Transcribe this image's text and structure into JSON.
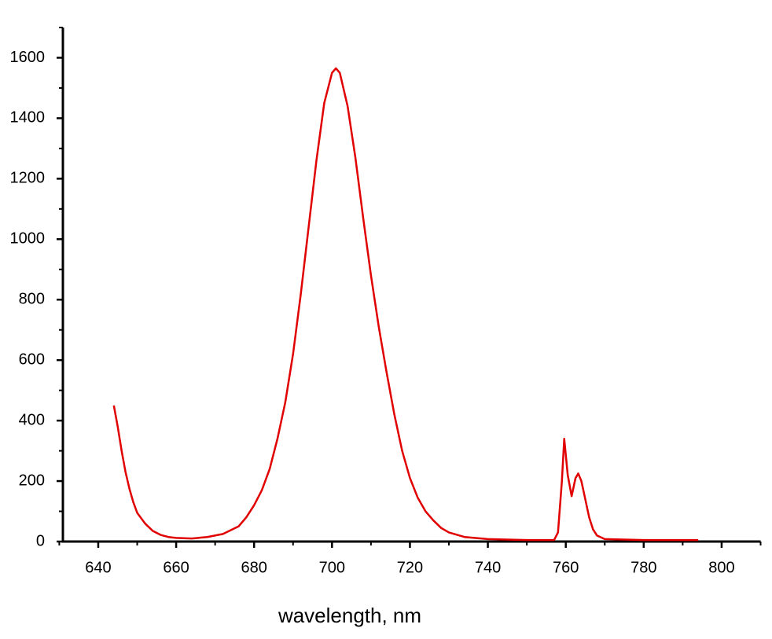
{
  "chart_data": {
    "type": "line",
    "x_label": "wavelength, nm",
    "x": [
      644,
      645,
      646,
      647,
      648,
      649,
      650,
      652,
      654,
      656,
      658,
      660,
      664,
      668,
      672,
      676,
      678,
      680,
      682,
      684,
      686,
      688,
      690,
      692,
      694,
      696,
      698,
      700,
      701,
      702,
      704,
      706,
      708,
      710,
      712,
      714,
      716,
      718,
      720,
      722,
      724,
      726,
      728,
      730,
      734,
      740,
      750,
      757,
      758,
      759,
      759.6,
      760.5,
      761.5,
      762.5,
      763.2,
      764,
      765,
      766,
      767,
      768,
      770,
      780,
      790,
      794
    ],
    "values": [
      450,
      380,
      300,
      230,
      175,
      130,
      95,
      60,
      35,
      22,
      15,
      12,
      10,
      15,
      25,
      50,
      80,
      120,
      170,
      240,
      340,
      460,
      620,
      820,
      1040,
      1260,
      1450,
      1550,
      1565,
      1550,
      1440,
      1270,
      1070,
      880,
      710,
      560,
      420,
      300,
      210,
      145,
      100,
      70,
      45,
      30,
      15,
      8,
      5,
      5,
      30,
      200,
      340,
      220,
      150,
      210,
      225,
      200,
      140,
      80,
      40,
      20,
      8,
      5,
      5,
      5
    ],
    "color": "#e00000",
    "xlim": [
      630,
      810
    ],
    "ylim": [
      0,
      1700
    ],
    "xticks": [
      640,
      660,
      680,
      700,
      720,
      740,
      760,
      780,
      800
    ],
    "yticks": [
      0,
      200,
      400,
      600,
      800,
      1000,
      1200,
      1400,
      1600
    ],
    "xminorticks": [
      630,
      650,
      670,
      690,
      710,
      730,
      750,
      770,
      790,
      810
    ],
    "yminorticks": [
      100,
      300,
      500,
      700,
      900,
      1100,
      1300,
      1500,
      1700
    ]
  }
}
